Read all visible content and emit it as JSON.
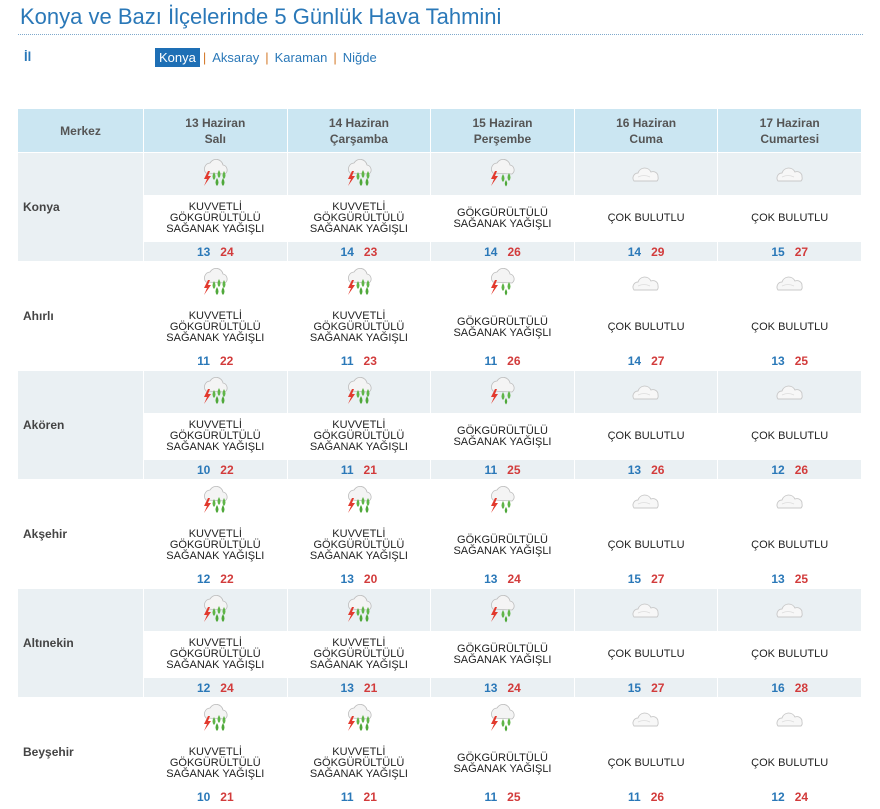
{
  "page": {
    "title": "Konya ve Bazı İlçelerinde 5 Günlük Hava Tahmini",
    "il_label": "İl"
  },
  "provinces": [
    {
      "label": "Konya",
      "active": true
    },
    {
      "label": "Aksaray",
      "active": false
    },
    {
      "label": "Karaman",
      "active": false
    },
    {
      "label": "Niğde",
      "active": false
    }
  ],
  "table": {
    "corner_header": "Merkez",
    "days": [
      {
        "date": "13 Haziran",
        "weekday": "Salı"
      },
      {
        "date": "14 Haziran",
        "weekday": "Çarşamba"
      },
      {
        "date": "15 Haziran",
        "weekday": "Perşembe"
      },
      {
        "date": "16 Haziran",
        "weekday": "Cuma"
      },
      {
        "date": "17 Haziran",
        "weekday": "Cumartesi"
      }
    ],
    "districts": [
      {
        "name": "Konya",
        "forecast": [
          {
            "icon": "heavy-thunder-shower-icon",
            "lines": [
              "KUVVETLİ",
              "GÖKGÜRÜLTÜLÜ",
              "SAĞANAK YAĞIŞLI"
            ],
            "min": "13",
            "max": "24"
          },
          {
            "icon": "heavy-thunder-shower-icon",
            "lines": [
              "KUVVETLİ",
              "GÖKGÜRÜLTÜLÜ",
              "SAĞANAK YAĞIŞLI"
            ],
            "min": "14",
            "max": "23"
          },
          {
            "icon": "thunder-shower-icon",
            "lines": [
              "GÖKGÜRÜLTÜLÜ",
              "SAĞANAK YAĞIŞLI"
            ],
            "min": "14",
            "max": "26"
          },
          {
            "icon": "cloudy-icon",
            "lines": [
              "ÇOK BULUTLU"
            ],
            "min": "14",
            "max": "29"
          },
          {
            "icon": "cloudy-icon",
            "lines": [
              "ÇOK BULUTLU"
            ],
            "min": "15",
            "max": "27"
          }
        ]
      },
      {
        "name": "Ahırlı",
        "forecast": [
          {
            "icon": "heavy-thunder-shower-icon",
            "lines": [
              "KUVVETLİ",
              "GÖKGÜRÜLTÜLÜ",
              "SAĞANAK YAĞIŞLI"
            ],
            "min": "11",
            "max": "22"
          },
          {
            "icon": "heavy-thunder-shower-icon",
            "lines": [
              "KUVVETLİ",
              "GÖKGÜRÜLTÜLÜ",
              "SAĞANAK YAĞIŞLI"
            ],
            "min": "11",
            "max": "23"
          },
          {
            "icon": "thunder-shower-icon",
            "lines": [
              "GÖKGÜRÜLTÜLÜ",
              "SAĞANAK YAĞIŞLI"
            ],
            "min": "11",
            "max": "26"
          },
          {
            "icon": "cloudy-icon",
            "lines": [
              "ÇOK BULUTLU"
            ],
            "min": "14",
            "max": "27"
          },
          {
            "icon": "cloudy-icon",
            "lines": [
              "ÇOK BULUTLU"
            ],
            "min": "13",
            "max": "25"
          }
        ]
      },
      {
        "name": "Akören",
        "forecast": [
          {
            "icon": "heavy-thunder-shower-icon",
            "lines": [
              "KUVVETLİ",
              "GÖKGÜRÜLTÜLÜ",
              "SAĞANAK YAĞIŞLI"
            ],
            "min": "10",
            "max": "22"
          },
          {
            "icon": "heavy-thunder-shower-icon",
            "lines": [
              "KUVVETLİ",
              "GÖKGÜRÜLTÜLÜ",
              "SAĞANAK YAĞIŞLI"
            ],
            "min": "11",
            "max": "21"
          },
          {
            "icon": "thunder-shower-icon",
            "lines": [
              "GÖKGÜRÜLTÜLÜ",
              "SAĞANAK YAĞIŞLI"
            ],
            "min": "11",
            "max": "25"
          },
          {
            "icon": "cloudy-icon",
            "lines": [
              "ÇOK BULUTLU"
            ],
            "min": "13",
            "max": "26"
          },
          {
            "icon": "cloudy-icon",
            "lines": [
              "ÇOK BULUTLU"
            ],
            "min": "12",
            "max": "26"
          }
        ]
      },
      {
        "name": "Akşehir",
        "forecast": [
          {
            "icon": "heavy-thunder-shower-icon",
            "lines": [
              "KUVVETLİ",
              "GÖKGÜRÜLTÜLÜ",
              "SAĞANAK YAĞIŞLI"
            ],
            "min": "12",
            "max": "22"
          },
          {
            "icon": "heavy-thunder-shower-icon",
            "lines": [
              "KUVVETLİ",
              "GÖKGÜRÜLTÜLÜ",
              "SAĞANAK YAĞIŞLI"
            ],
            "min": "13",
            "max": "20"
          },
          {
            "icon": "thunder-shower-icon",
            "lines": [
              "GÖKGÜRÜLTÜLÜ",
              "SAĞANAK YAĞIŞLI"
            ],
            "min": "13",
            "max": "24"
          },
          {
            "icon": "cloudy-icon",
            "lines": [
              "ÇOK BULUTLU"
            ],
            "min": "15",
            "max": "27"
          },
          {
            "icon": "cloudy-icon",
            "lines": [
              "ÇOK BULUTLU"
            ],
            "min": "13",
            "max": "25"
          }
        ]
      },
      {
        "name": "Altınekin",
        "forecast": [
          {
            "icon": "heavy-thunder-shower-icon",
            "lines": [
              "KUVVETLİ",
              "GÖKGÜRÜLTÜLÜ",
              "SAĞANAK YAĞIŞLI"
            ],
            "min": "12",
            "max": "24"
          },
          {
            "icon": "heavy-thunder-shower-icon",
            "lines": [
              "KUVVETLİ",
              "GÖKGÜRÜLTÜLÜ",
              "SAĞANAK YAĞIŞLI"
            ],
            "min": "13",
            "max": "21"
          },
          {
            "icon": "thunder-shower-icon",
            "lines": [
              "GÖKGÜRÜLTÜLÜ",
              "SAĞANAK YAĞIŞLI"
            ],
            "min": "13",
            "max": "24"
          },
          {
            "icon": "cloudy-icon",
            "lines": [
              "ÇOK BULUTLU"
            ],
            "min": "15",
            "max": "27"
          },
          {
            "icon": "cloudy-icon",
            "lines": [
              "ÇOK BULUTLU"
            ],
            "min": "16",
            "max": "28"
          }
        ]
      },
      {
        "name": "Beyşehir",
        "forecast": [
          {
            "icon": "heavy-thunder-shower-icon",
            "lines": [
              "KUVVETLİ",
              "GÖKGÜRÜLTÜLÜ",
              "SAĞANAK YAĞIŞLI"
            ],
            "min": "10",
            "max": "21"
          },
          {
            "icon": "heavy-thunder-shower-icon",
            "lines": [
              "KUVVETLİ",
              "GÖKGÜRÜLTÜLÜ",
              "SAĞANAK YAĞIŞLI"
            ],
            "min": "11",
            "max": "21"
          },
          {
            "icon": "thunder-shower-icon",
            "lines": [
              "GÖKGÜRÜLTÜLÜ",
              "SAĞANAK YAĞIŞLI"
            ],
            "min": "11",
            "max": "25"
          },
          {
            "icon": "cloudy-icon",
            "lines": [
              "ÇOK BULUTLU"
            ],
            "min": "11",
            "max": "26"
          },
          {
            "icon": "cloudy-icon",
            "lines": [
              "ÇOK BULUTLU"
            ],
            "min": "12",
            "max": "24"
          }
        ]
      }
    ]
  },
  "colors": {
    "title": "#2a78b8",
    "header_bg": "#cbe6f2",
    "band_bg": "#eaf0f3",
    "active_tab": "#1e6fb5",
    "min_temp": "#2a78b8",
    "max_temp": "#d23b3b"
  }
}
